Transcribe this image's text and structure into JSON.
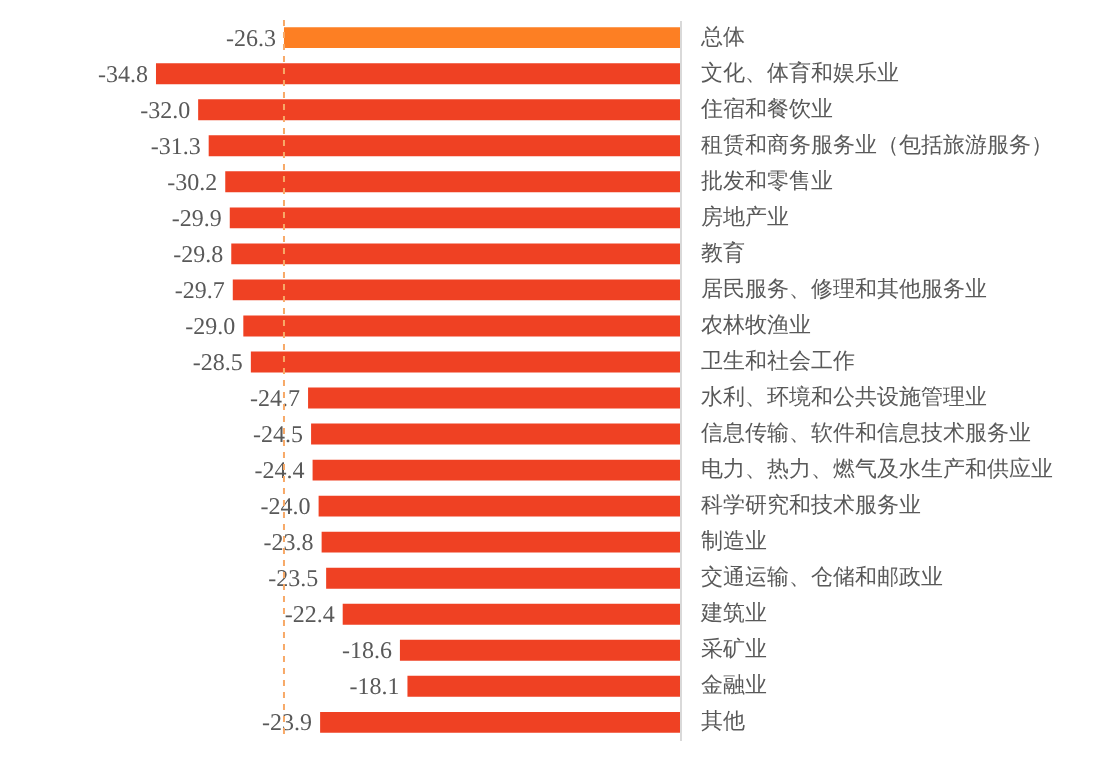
{
  "chart_data": {
    "type": "bar",
    "orientation": "horizontal",
    "categories": [
      "总体",
      "文化、体育和娱乐业",
      "住宿和餐饮业",
      "租赁和商务服务业（包括旅游服务）",
      "批发和零售业",
      "房地产业",
      "教育",
      "居民服务、修理和其他服务业",
      "农林牧渔业",
      "卫生和社会工作",
      "水利、环境和公共设施管理业",
      "信息传输、软件和信息技术服务业",
      "电力、热力、燃气及水生产和供应业",
      "科学研究和技术服务业",
      "制造业",
      "交通运输、仓储和邮政业",
      "建筑业",
      "采矿业",
      "金融业",
      "其他"
    ],
    "values": [
      -26.3,
      -34.8,
      -32.0,
      -31.3,
      -30.2,
      -29.9,
      -29.8,
      -29.7,
      -29.0,
      -28.5,
      -24.7,
      -24.5,
      -24.4,
      -24.0,
      -23.8,
      -23.5,
      -22.4,
      -18.6,
      -18.1,
      -23.9
    ],
    "value_labels": [
      "-26.3",
      "-34.8",
      "-32.0",
      "-31.3",
      "-30.2",
      "-29.9",
      "-29.8",
      "-29.7",
      "-29.0",
      "-28.5",
      "-24.7",
      "-24.5",
      "-24.4",
      "-24.0",
      "-23.8",
      "-23.5",
      "-22.4",
      "-18.6",
      "-18.1",
      "-23.9"
    ],
    "colors": [
      "#fd7f23",
      "#ef4123",
      "#ef4123",
      "#ef4123",
      "#ef4123",
      "#ef4123",
      "#ef4123",
      "#ef4123",
      "#ef4123",
      "#ef4123",
      "#ef4123",
      "#ef4123",
      "#ef4123",
      "#ef4123",
      "#ef4123",
      "#ef4123",
      "#ef4123",
      "#ef4123",
      "#ef4123",
      "#ef4123"
    ],
    "ref_lines": [
      {
        "axis": "x",
        "value": -26.3,
        "color": "#f7a968",
        "line_style": "dashed"
      }
    ]
  }
}
